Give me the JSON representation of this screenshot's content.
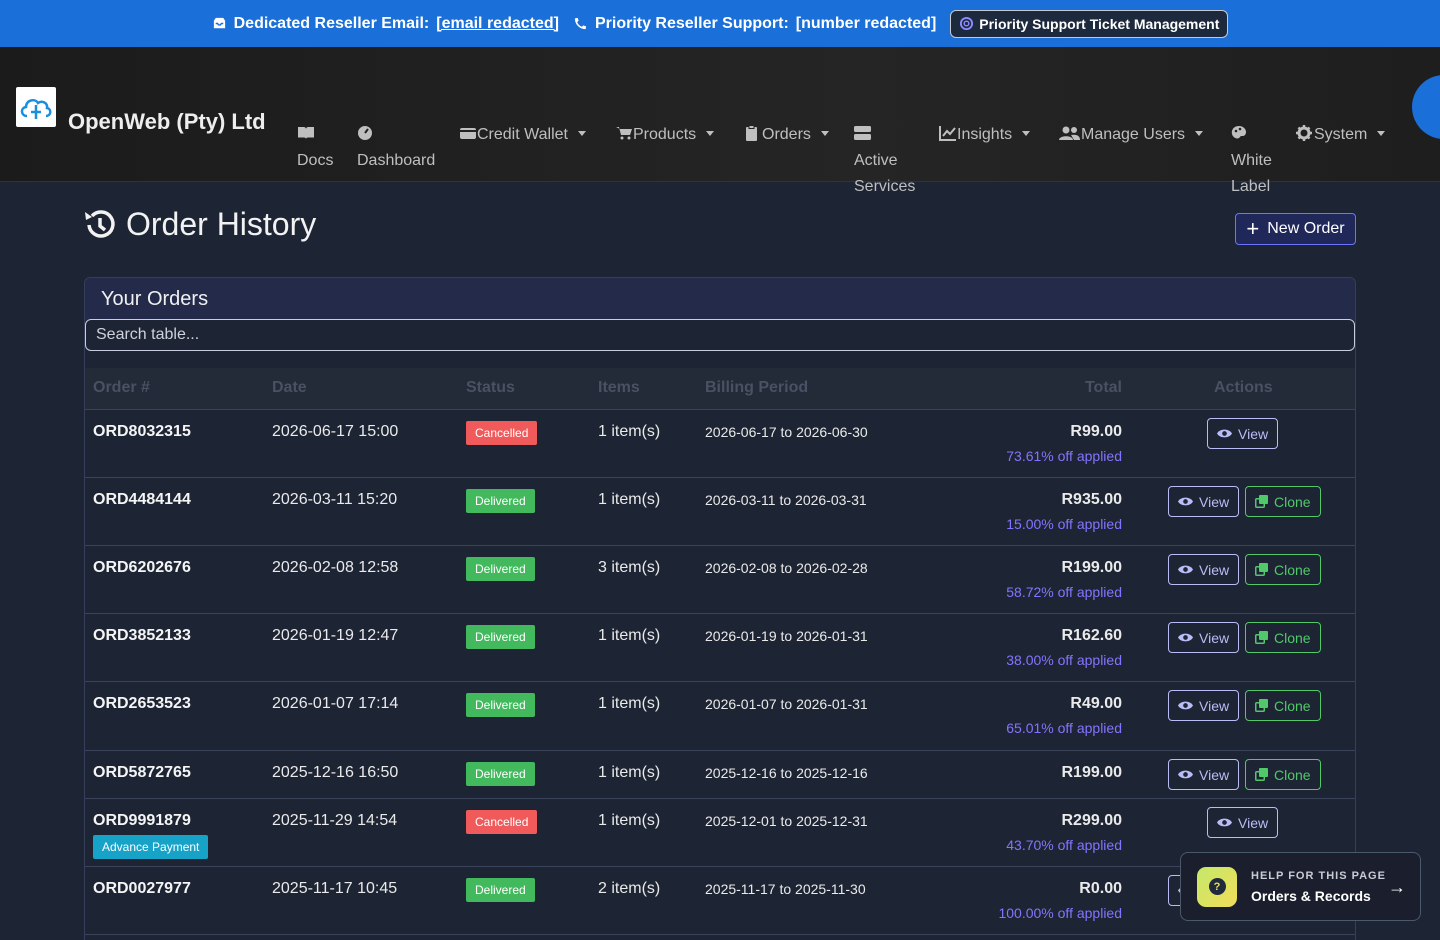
{
  "topbar": {
    "email_label": "Dedicated Reseller Email:",
    "email_value": "[email redacted]",
    "phone_label": "Priority Reseller Support:",
    "phone_value": "[number redacted]",
    "ticket_button": "Priority Support Ticket Management"
  },
  "nav": {
    "brand": "OpenWeb (Pty) Ltd",
    "items": {
      "docs": "Docs",
      "dashboard": "Dashboard",
      "credit_wallet": "Credit Wallet",
      "products": "Products",
      "orders": "Orders",
      "active_services_1": "Active",
      "active_services_2": "Services",
      "insights": "Insights",
      "manage_users": "Manage Users",
      "white_label_1": "White",
      "white_label_2": "Label",
      "system": "System"
    }
  },
  "page": {
    "title": "Order History",
    "new_order": "New Order"
  },
  "card": {
    "title": "Your Orders",
    "search_placeholder": "Search table..."
  },
  "table": {
    "headers": {
      "order": "Order #",
      "date": "Date",
      "status": "Status",
      "items": "Items",
      "billing": "Billing Period",
      "total": "Total",
      "actions": "Actions"
    },
    "view_label": "View",
    "clone_label": "Clone",
    "rows": [
      {
        "order": "ORD8032315",
        "date": "2026-06-17 15:00",
        "status": "Cancelled",
        "items": "1 item(s)",
        "billing": "2026-06-17 to 2026-06-30",
        "total": "R99.00",
        "discount": "73.61% off applied",
        "badge": "",
        "clone": false
      },
      {
        "order": "ORD4484144",
        "date": "2026-03-11 15:20",
        "status": "Delivered",
        "items": "1 item(s)",
        "billing": "2026-03-11 to 2026-03-31",
        "total": "R935.00",
        "discount": "15.00% off applied",
        "badge": "",
        "clone": true
      },
      {
        "order": "ORD6202676",
        "date": "2026-02-08 12:58",
        "status": "Delivered",
        "items": "3 item(s)",
        "billing": "2026-02-08 to 2026-02-28",
        "total": "R199.00",
        "discount": "58.72% off applied",
        "badge": "",
        "clone": true
      },
      {
        "order": "ORD3852133",
        "date": "2026-01-19 12:47",
        "status": "Delivered",
        "items": "1 item(s)",
        "billing": "2026-01-19 to 2026-01-31",
        "total": "R162.60",
        "discount": "38.00% off applied",
        "badge": "",
        "clone": true
      },
      {
        "order": "ORD2653523",
        "date": "2026-01-07 17:14",
        "status": "Delivered",
        "items": "1 item(s)",
        "billing": "2026-01-07 to 2026-01-31",
        "total": "R49.00",
        "discount": "65.01% off applied",
        "badge": "",
        "clone": true
      },
      {
        "order": "ORD5872765",
        "date": "2025-12-16 16:50",
        "status": "Delivered",
        "items": "1 item(s)",
        "billing": "2025-12-16 to 2025-12-16",
        "total": "R199.00",
        "discount": "",
        "badge": "",
        "clone": true
      },
      {
        "order": "ORD9991879",
        "date": "2025-11-29 14:54",
        "status": "Cancelled",
        "items": "1 item(s)",
        "billing": "2025-12-01 to 2025-12-31",
        "total": "R299.00",
        "discount": "43.70% off applied",
        "badge": "Advance Payment",
        "clone": false
      },
      {
        "order": "ORD0027977",
        "date": "2025-11-17 10:45",
        "status": "Delivered",
        "items": "2 item(s)",
        "billing": "2025-11-17 to 2025-11-30",
        "total": "R0.00",
        "discount": "100.00% off applied",
        "badge": "",
        "clone": true
      }
    ]
  },
  "help": {
    "label": "HELP FOR THIS PAGE",
    "title": "Orders & Records"
  },
  "colors": {
    "topbar": "#1a6fd8",
    "cancelled": "#f05a5a",
    "delivered": "#43b95e",
    "discount": "#8574ff",
    "view": "#b9bdf5",
    "clone": "#51c86a"
  }
}
